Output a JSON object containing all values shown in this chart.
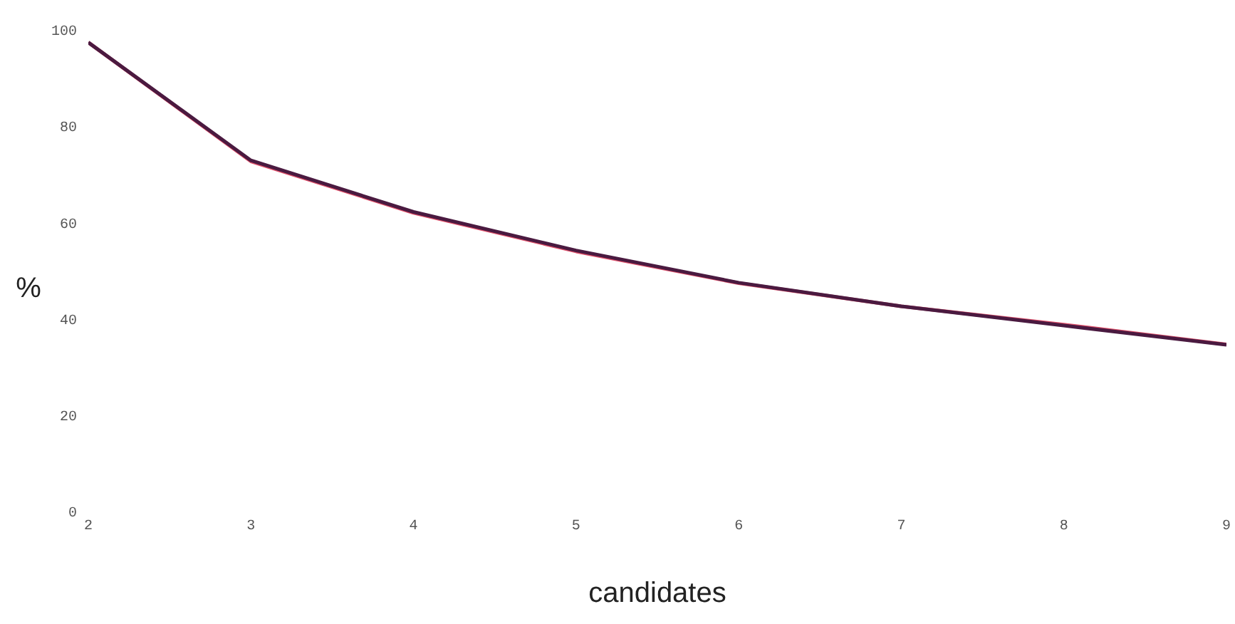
{
  "chart_data": {
    "type": "line",
    "xlabel": "candidates",
    "ylabel": "%",
    "x": [
      2,
      3,
      4,
      5,
      6,
      7,
      8,
      9
    ],
    "series": [
      {
        "color": "#4a1a40",
        "values": [
          97.7,
          73.2,
          62.5,
          54.5,
          47.8,
          42.9,
          38.9,
          34.9
        ]
      },
      {
        "color": "#e0506a",
        "values": [
          97.7,
          73.0,
          62.3,
          54.3,
          47.7,
          42.9,
          39.1,
          35.0
        ]
      }
    ],
    "xlim": [
      2,
      9
    ],
    "xticks": [
      2,
      3,
      4,
      5,
      6,
      7,
      8,
      9
    ],
    "ylim": [
      0,
      100
    ],
    "yticks": [
      0,
      20,
      40,
      60,
      80,
      100
    ],
    "grid": false,
    "legend": false,
    "marker": "none",
    "line_style": "solid"
  }
}
